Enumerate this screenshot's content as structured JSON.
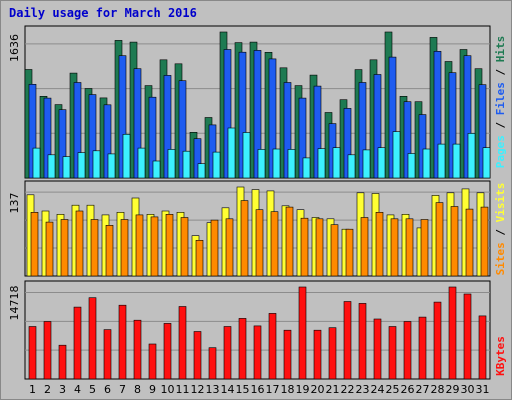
{
  "title": "Daily usage for March 2016",
  "colors": {
    "pages": "#1e5cf0",
    "pages_top": "#0c3fd0",
    "files": "#3cf0ff",
    "hits": "#1e7a52",
    "sites": "#ff8a00",
    "visits": "#ffff33",
    "kbytes": "#ff1010",
    "day_weekday": "#000000",
    "day_weekend": "#1f7a52",
    "panel_bg": "#c0c0c0",
    "frame": "#000000"
  },
  "chart_data": [
    {
      "type": "bar",
      "name": "hits-files-pages",
      "ymax_label": "1636",
      "ymax": 1636,
      "legend": [
        "Pages",
        "Files",
        "Hits"
      ],
      "categories": [
        "1",
        "2",
        "3",
        "4",
        "5",
        "6",
        "7",
        "8",
        "9",
        "10",
        "11",
        "12",
        "13",
        "14",
        "15",
        "16",
        "17",
        "18",
        "19",
        "20",
        "21",
        "22",
        "23",
        "24",
        "25",
        "26",
        "27",
        "28",
        "29",
        "30",
        "31"
      ],
      "series": [
        {
          "name": "Hits",
          "values": [
            1216,
            915,
            823,
            1175,
            1003,
            898,
            1542,
            1523,
            1035,
            1325,
            1280,
            512,
            678,
            1636,
            1517,
            1523,
            1409,
            1235,
            1035,
            1153,
            734,
            877,
            1215,
            1325,
            1636,
            916,
            855,
            1575,
            1305,
            1440,
            1225
          ]
        },
        {
          "name": "Files",
          "values": [
            1050,
            895,
            765,
            1070,
            935,
            820,
            1370,
            1225,
            905,
            1150,
            1090,
            440,
            595,
            1440,
            1410,
            1430,
            1335,
            1070,
            895,
            1030,
            610,
            780,
            1070,
            1160,
            1355,
            855,
            710,
            1420,
            1180,
            1370,
            1045
          ]
        },
        {
          "name": "Pages",
          "values": [
            335,
            260,
            240,
            285,
            305,
            270,
            490,
            335,
            190,
            320,
            300,
            160,
            290,
            560,
            510,
            320,
            325,
            320,
            225,
            330,
            340,
            260,
            315,
            340,
            520,
            275,
            325,
            380,
            380,
            500,
            340
          ]
        }
      ]
    },
    {
      "type": "bar",
      "name": "visits-sites",
      "ymax_label": "137",
      "ymax": 137,
      "legend": [
        "Sites",
        "Visits"
      ],
      "categories": [
        "1",
        "2",
        "3",
        "4",
        "5",
        "6",
        "7",
        "8",
        "9",
        "10",
        "11",
        "12",
        "13",
        "14",
        "15",
        "16",
        "17",
        "18",
        "19",
        "20",
        "21",
        "22",
        "23",
        "24",
        "25",
        "26",
        "27",
        "28",
        "29",
        "30",
        "31"
      ],
      "series": [
        {
          "name": "Visits",
          "values": [
            125,
            100,
            95,
            109,
            109,
            94,
            98,
            120,
            95,
            100,
            98,
            62,
            82,
            105,
            137,
            133,
            131,
            108,
            102,
            90,
            88,
            72,
            128,
            127,
            94,
            95,
            74,
            124,
            128,
            134,
            128
          ]
        },
        {
          "name": "Sites",
          "values": [
            98,
            83,
            87,
            100,
            87,
            78,
            87,
            94,
            91,
            95,
            90,
            55,
            86,
            88,
            116,
            102,
            99,
            106,
            89,
            88,
            79,
            72,
            90,
            98,
            88,
            88,
            87,
            113,
            107,
            103,
            106
          ]
        }
      ]
    },
    {
      "type": "bar",
      "name": "kbytes",
      "ymax_label": "14718",
      "ymax": 14718,
      "legend": [
        "KBytes"
      ],
      "categories": [
        "1",
        "2",
        "3",
        "4",
        "5",
        "6",
        "7",
        "8",
        "9",
        "10",
        "11",
        "12",
        "13",
        "14",
        "15",
        "16",
        "17",
        "18",
        "19",
        "20",
        "21",
        "22",
        "23",
        "24",
        "25",
        "26",
        "27",
        "28",
        "29",
        "30",
        "31"
      ],
      "series": [
        {
          "name": "KBytes",
          "values": [
            8400,
            9200,
            5400,
            11500,
            13000,
            7900,
            11800,
            9400,
            5600,
            8900,
            11600,
            7600,
            5000,
            8400,
            9700,
            8500,
            10500,
            7800,
            14718,
            7800,
            8200,
            12400,
            12100,
            9600,
            8400,
            9200,
            9900,
            12300,
            14718,
            13600,
            10100
          ]
        }
      ]
    }
  ]
}
